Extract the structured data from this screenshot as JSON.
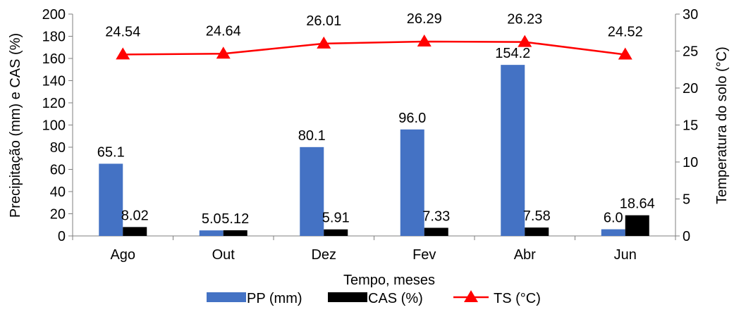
{
  "chart_data": {
    "type": "bar",
    "xlabel": "Tempo, meses",
    "ylabel": "Precipitação (mm) e CAS (%)",
    "y2label": "Temperatura do solo (°C)",
    "categories": [
      "Ago",
      "Out",
      "Dez",
      "Fev",
      "Abr",
      "Jun"
    ],
    "ylim": [
      0,
      200
    ],
    "yticks": [
      0,
      20,
      40,
      60,
      80,
      100,
      120,
      140,
      160,
      180,
      200
    ],
    "y2lim": [
      0,
      30
    ],
    "y2ticks": [
      0,
      5,
      10,
      15,
      20,
      25,
      30
    ],
    "grid": false,
    "legend_position": "bottom",
    "series": [
      {
        "name": "PP (mm)",
        "type": "bar",
        "axis": "left",
        "color": "#4472C4",
        "values": [
          65.1,
          5.0,
          80.1,
          96.0,
          154.2,
          6.0
        ],
        "labels": [
          "65.1",
          "5.0",
          "80.1",
          "96.0",
          "154.2",
          "6.0"
        ]
      },
      {
        "name": "CAS (%)",
        "type": "bar",
        "axis": "left",
        "color": "#000000",
        "values": [
          8.02,
          5.12,
          5.91,
          7.33,
          7.58,
          18.64
        ],
        "labels": [
          "8.02",
          "5.12",
          "5.91",
          "7.33",
          "7.58",
          "18.64"
        ]
      },
      {
        "name": "TS (°C)",
        "type": "line",
        "axis": "right",
        "color": "#FF0000",
        "marker": "triangle",
        "values": [
          24.54,
          24.64,
          26.01,
          26.29,
          26.23,
          24.52
        ],
        "labels": [
          "24.54",
          "24.64",
          "26.01",
          "26.29",
          "26.23",
          "24.52"
        ]
      }
    ]
  }
}
